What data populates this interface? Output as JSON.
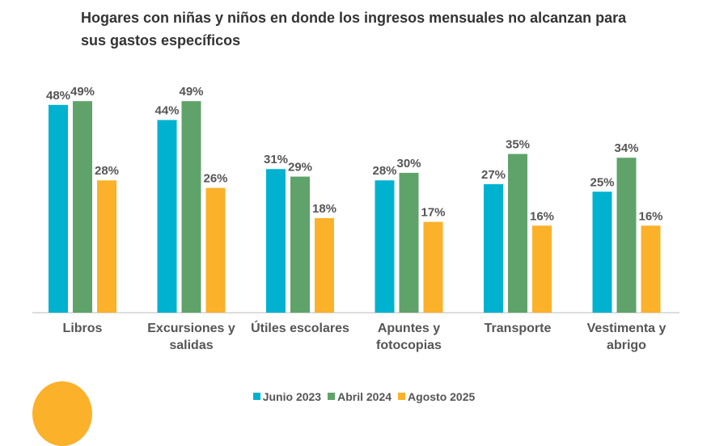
{
  "chart_data": {
    "type": "bar",
    "title": "Hogares con niñas y niños en donde los ingresos mensuales no alcanzan para sus gastos específicos",
    "categories": [
      "Libros",
      "Excursiones y salidas",
      "Útiles escolares",
      "Apuntes y fotocopias",
      "Transporte",
      "Vestimenta y abrigo"
    ],
    "series": [
      {
        "name": "Junio 2023",
        "color": "#00b2cf",
        "values": [
          48,
          44,
          31,
          28,
          27,
          25
        ]
      },
      {
        "name": "Abril 2024",
        "color": "#5fa36b",
        "values": [
          49,
          49,
          29,
          30,
          35,
          34
        ]
      },
      {
        "name": "Agosto 2025",
        "color": "#fbb12a",
        "values": [
          28,
          26,
          18,
          17,
          16,
          16
        ]
      }
    ],
    "value_suffix": "%",
    "grid": false,
    "legend": "bottom"
  },
  "decor": {
    "circle_color": "#fbb12a"
  }
}
